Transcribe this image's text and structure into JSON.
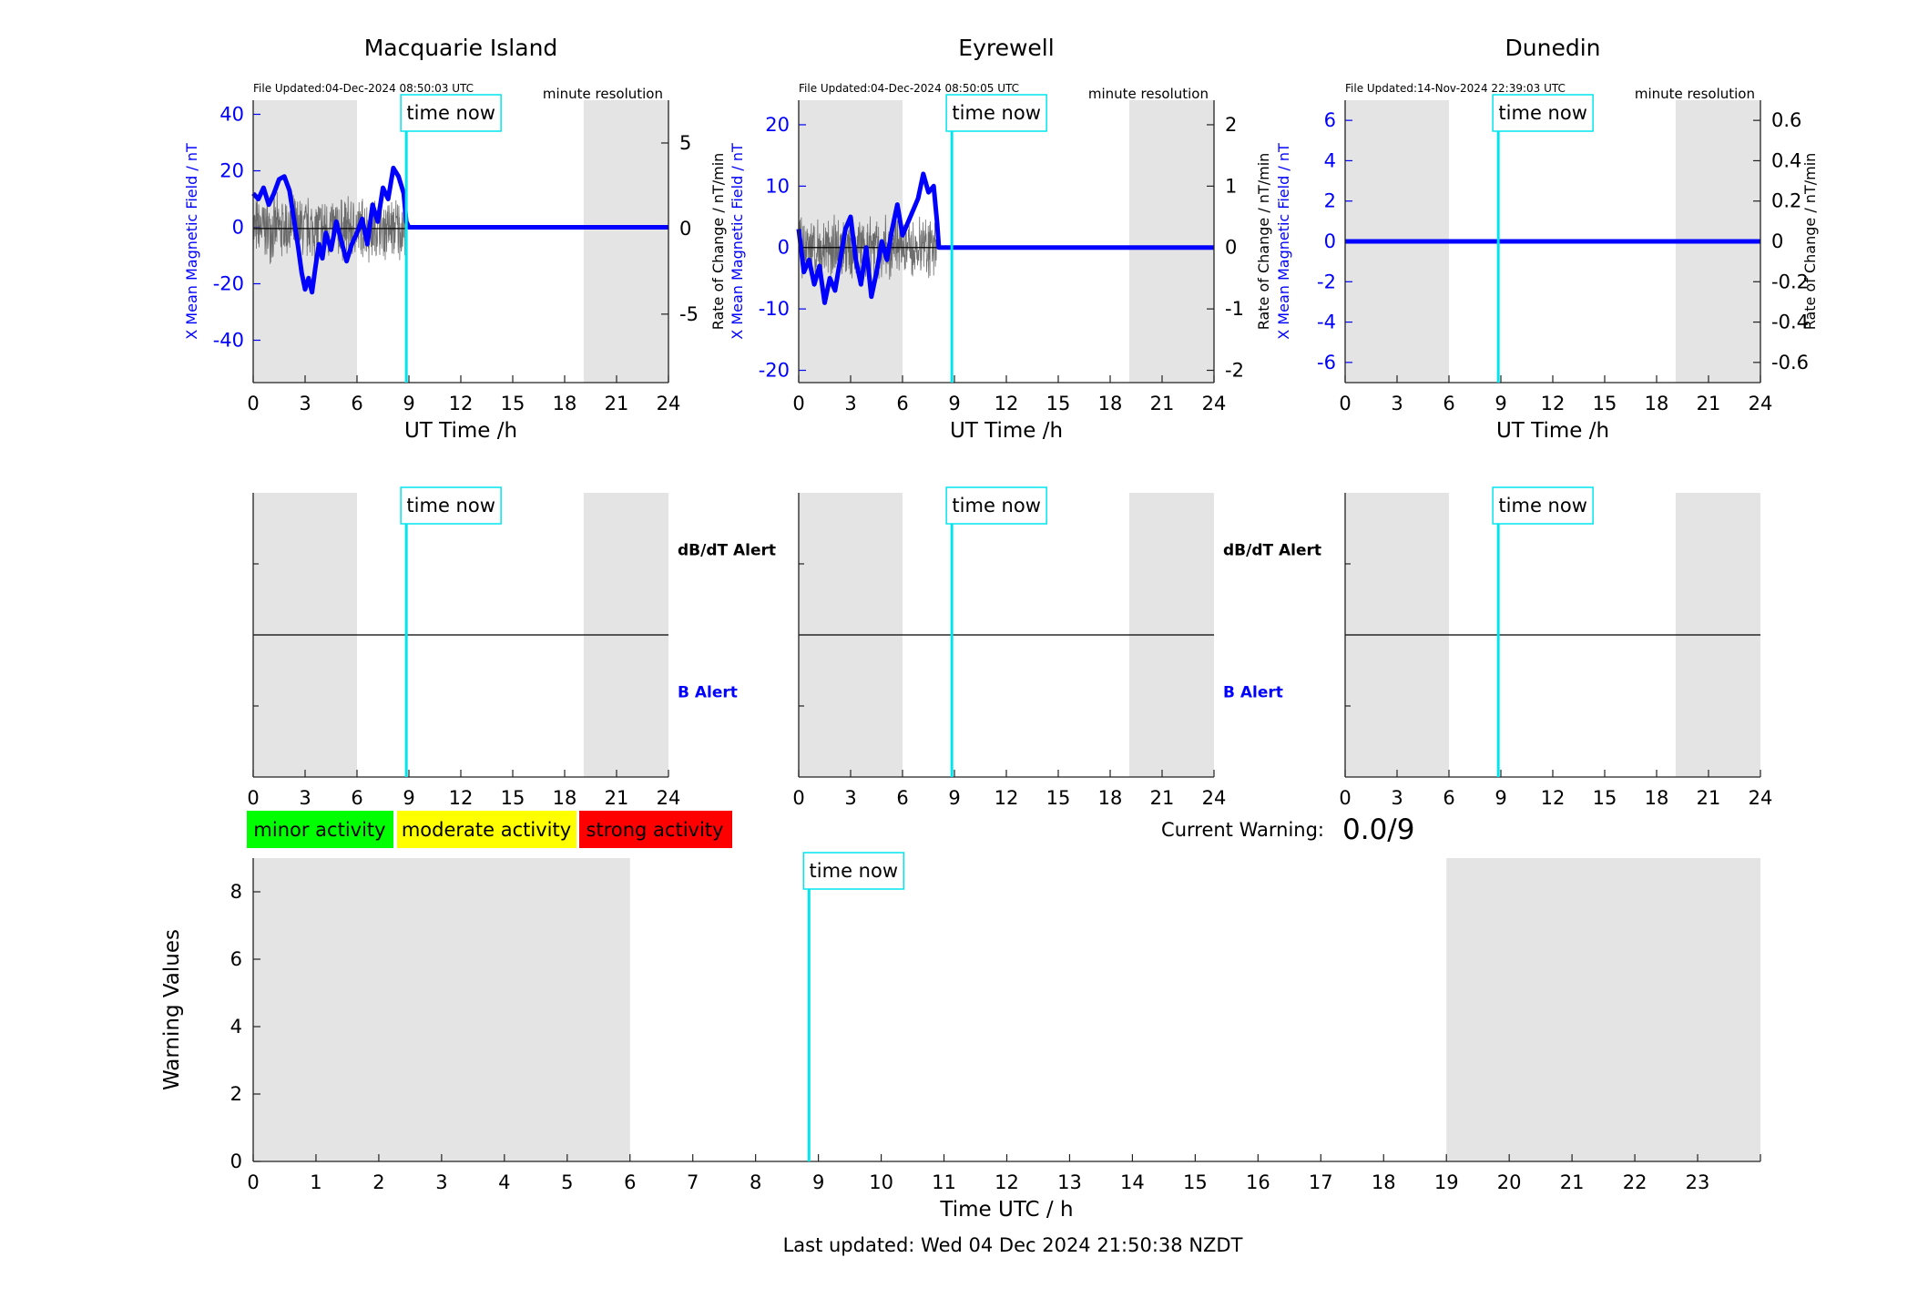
{
  "footer": {
    "last_updated": "Last updated: Wed 04 Dec 2024 21:50:38 NZDT"
  },
  "colors": {
    "x_field": "#0000ff",
    "rate": "#555555",
    "time_now": "#00e5ee",
    "shade": "#e4e4e4",
    "minor": "#00ff00",
    "moderate": "#ffff00",
    "strong": "#ff0000",
    "b_alert": "#0000ff"
  },
  "time_now_label": "time now",
  "legend": {
    "minor": "minor activity",
    "moderate": "moderate activity",
    "strong": "strong activity"
  },
  "current_warning": {
    "label": "Current Warning:",
    "value": "0.0/9"
  },
  "alerts": {
    "dbdt": "dB/dT Alert",
    "b": "B Alert"
  },
  "chart_data": [
    {
      "type": "line",
      "title": "Macquarie Island",
      "file_updated": "File Updated:04-Dec-2024 08:50:03 UTC",
      "resolution": "minute resolution",
      "xlabel": "UT Time /h",
      "ylabel_left": "X Mean Magnetic Field / nT",
      "ylabel_right": "Rate of Change / nT/min",
      "xlim": [
        0,
        24
      ],
      "xticks": [
        "0",
        "3",
        "6",
        "9",
        "12",
        "15",
        "18",
        "21",
        "24"
      ],
      "ylim_left": [
        -55,
        45
      ],
      "yticks_left": [
        "-40",
        "-20",
        "0",
        "20",
        "40"
      ],
      "ylim_right": [
        -9,
        7.5
      ],
      "yticks_right": [
        "-5",
        "0",
        "5"
      ],
      "time_now": 8.85,
      "night_shading": [
        [
          0,
          6
        ],
        [
          19.1,
          24
        ]
      ],
      "series": [
        {
          "axis": "left",
          "style": "thick",
          "x": [
            0,
            0.3,
            0.6,
            0.9,
            1.2,
            1.5,
            1.8,
            2.1,
            2.4,
            2.6,
            2.8,
            3.0,
            3.2,
            3.4,
            3.6,
            3.8,
            4.0,
            4.2,
            4.5,
            4.8,
            5.1,
            5.4,
            5.7,
            6.0,
            6.3,
            6.6,
            6.9,
            7.2,
            7.5,
            7.8,
            8.1,
            8.4,
            8.7,
            8.85,
            9.0,
            24
          ],
          "y": [
            12,
            10,
            14,
            8,
            12,
            17,
            18,
            13,
            1,
            -7,
            -16,
            -22,
            -18,
            -23,
            -14,
            -6,
            -11,
            -2,
            -8,
            2,
            -5,
            -12,
            -6,
            -2,
            3,
            -6,
            8,
            2,
            14,
            10,
            21,
            18,
            12,
            2,
            0,
            0
          ]
        },
        {
          "axis": "right",
          "style": "noise",
          "x_range": [
            0,
            8.85
          ],
          "amplitude": 2.2,
          "seed": 7
        }
      ]
    },
    {
      "type": "line",
      "title": "Eyrewell",
      "file_updated": "File Updated:04-Dec-2024 08:50:05 UTC",
      "resolution": "minute resolution",
      "xlabel": "UT Time /h",
      "ylabel_left": "X Mean Magnetic Field / nT",
      "ylabel_right": "Rate of Change / nT/min",
      "xlim": [
        0,
        24
      ],
      "xticks": [
        "0",
        "3",
        "6",
        "9",
        "12",
        "15",
        "18",
        "21",
        "24"
      ],
      "ylim_left": [
        -22,
        24
      ],
      "yticks_left": [
        "-20",
        "-10",
        "0",
        "10",
        "20"
      ],
      "ylim_right": [
        -2.2,
        2.4
      ],
      "yticks_right": [
        "-2",
        "-1",
        "0",
        "1",
        "2"
      ],
      "time_now": 8.85,
      "night_shading": [
        [
          0,
          6
        ],
        [
          19.1,
          24
        ]
      ],
      "series": [
        {
          "axis": "left",
          "style": "thick",
          "x": [
            0,
            0.3,
            0.6,
            0.9,
            1.2,
            1.5,
            1.8,
            2.1,
            2.4,
            2.7,
            3.0,
            3.3,
            3.6,
            3.9,
            4.2,
            4.5,
            4.8,
            5.1,
            5.4,
            5.7,
            6.0,
            6.3,
            6.6,
            6.9,
            7.2,
            7.5,
            7.8,
            8.0,
            8.1,
            8.85,
            24
          ],
          "y": [
            3,
            -4,
            -2,
            -6,
            -3,
            -9,
            -5,
            -7,
            -2,
            3,
            5,
            -2,
            -6,
            0,
            -8,
            -4,
            1,
            -2,
            3,
            7,
            2,
            4,
            6,
            8,
            12,
            9,
            10,
            4,
            0,
            0,
            0
          ]
        },
        {
          "axis": "right",
          "style": "noise",
          "x_range": [
            0,
            8.1
          ],
          "amplitude": 0.55,
          "seed": 13
        }
      ]
    },
    {
      "type": "line",
      "title": "Dunedin",
      "file_updated": "File Updated:14-Nov-2024 22:39:03 UTC",
      "resolution": "minute resolution",
      "xlabel": "UT Time /h",
      "ylabel_left": "X Mean Magnetic Field / nT",
      "ylabel_right": "Rate of Change / nT/min",
      "xlim": [
        0,
        24
      ],
      "xticks": [
        "0",
        "3",
        "6",
        "9",
        "12",
        "15",
        "18",
        "21",
        "24"
      ],
      "ylim_left": [
        -7,
        7
      ],
      "yticks_left": [
        "-6",
        "-4",
        "-2",
        "0",
        "2",
        "4",
        "6"
      ],
      "ylim_right": [
        -0.7,
        0.7
      ],
      "yticks_right": [
        "-0.6",
        "-0.4",
        "-0.2",
        "0",
        "0.2",
        "0.4",
        "0.6"
      ],
      "time_now": 8.85,
      "night_shading": [
        [
          0,
          6
        ],
        [
          19.1,
          24
        ]
      ],
      "series": [
        {
          "axis": "left",
          "style": "thick",
          "x": [
            0,
            24
          ],
          "y": [
            0,
            0
          ]
        }
      ]
    },
    {
      "type": "line",
      "title": "",
      "xlim": [
        0,
        24
      ],
      "xticks": [
        "0",
        "3",
        "6",
        "9",
        "12",
        "15",
        "18",
        "21",
        "24"
      ],
      "time_now": 8.85,
      "night_shading": [
        [
          0,
          6
        ],
        [
          19.1,
          24
        ]
      ],
      "separator": 0.5
    },
    {
      "type": "line",
      "title": "",
      "xlim": [
        0,
        24
      ],
      "xticks": [
        "0",
        "3",
        "6",
        "9",
        "12",
        "15",
        "18",
        "21",
        "24"
      ],
      "time_now": 8.85,
      "night_shading": [
        [
          0,
          6
        ],
        [
          19.1,
          24
        ]
      ],
      "separator": 0.5
    },
    {
      "type": "line",
      "title": "",
      "xlim": [
        0,
        24
      ],
      "xticks": [
        "0",
        "3",
        "6",
        "9",
        "12",
        "15",
        "18",
        "21",
        "24"
      ],
      "time_now": 8.85,
      "night_shading": [
        [
          0,
          6
        ],
        [
          19.1,
          24
        ]
      ],
      "separator": 0.5
    },
    {
      "type": "bar",
      "title": "",
      "xlabel": "Time UTC / h",
      "ylabel": "Warning Values",
      "xlim": [
        0,
        24
      ],
      "xticks": [
        "0",
        "1",
        "2",
        "3",
        "4",
        "5",
        "6",
        "7",
        "8",
        "9",
        "10",
        "11",
        "12",
        "13",
        "14",
        "15",
        "16",
        "17",
        "18",
        "19",
        "20",
        "21",
        "22",
        "23"
      ],
      "ylim": [
        0,
        9
      ],
      "yticks": [
        "0",
        "2",
        "4",
        "6",
        "8"
      ],
      "time_now": 8.85,
      "night_shading": [
        [
          0,
          6
        ],
        [
          19,
          24
        ]
      ],
      "values": []
    }
  ]
}
